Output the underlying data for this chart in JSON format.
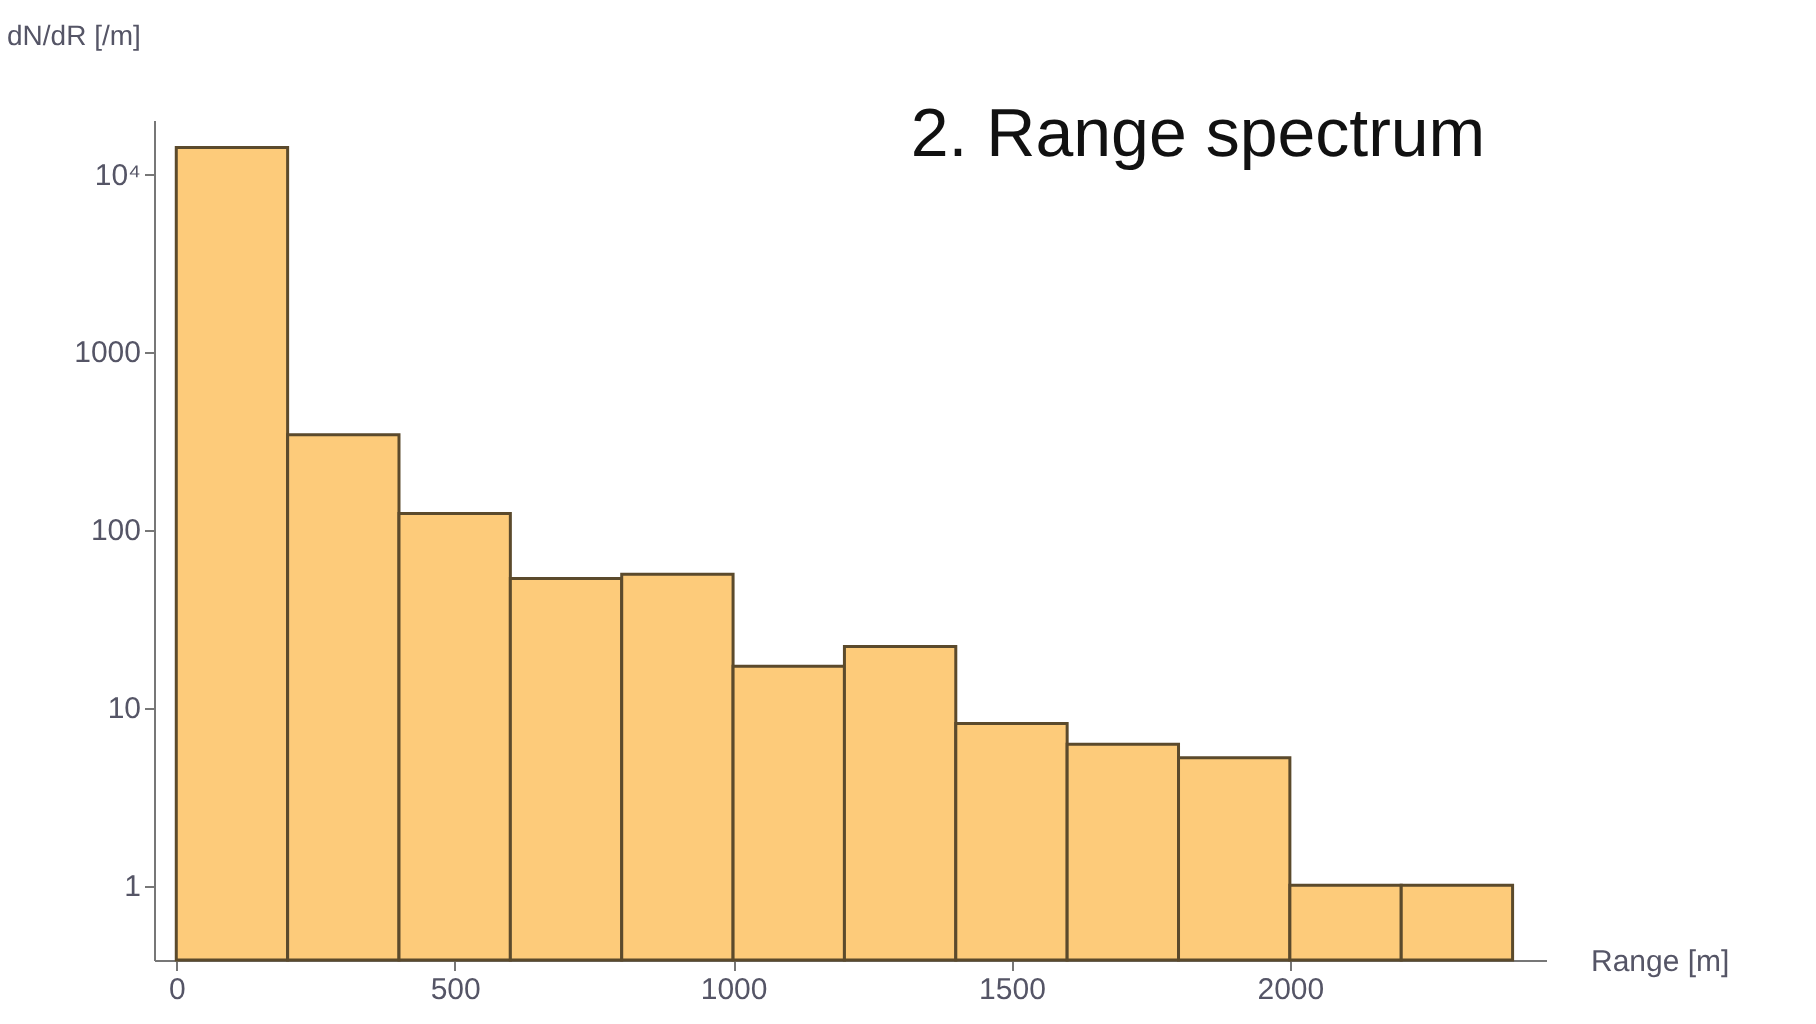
{
  "chart_data": {
    "type": "histogram",
    "title": "2. Range spectrum",
    "xlabel": "Range [m]",
    "ylabel": "dN/dR [/m]",
    "bins": [
      0,
      200,
      400,
      600,
      800,
      1000,
      1200,
      1400,
      1600,
      1800,
      2000,
      2200,
      2400
    ],
    "values": [
      14000,
      340,
      123,
      53,
      56,
      17,
      22,
      8.1,
      6.2,
      5.2,
      1,
      1
    ],
    "color": "#fdcb7a",
    "log": "y",
    "xlim": [
      -40,
      2460
    ],
    "xticks": [
      0,
      500,
      1000,
      1500,
      2000
    ],
    "ylim": [
      0.38,
      20000
    ],
    "yticks": [
      1,
      10,
      100,
      1000,
      {
        "value": 10000,
        "label": "10⁴"
      }
    ],
    "grid": false
  }
}
